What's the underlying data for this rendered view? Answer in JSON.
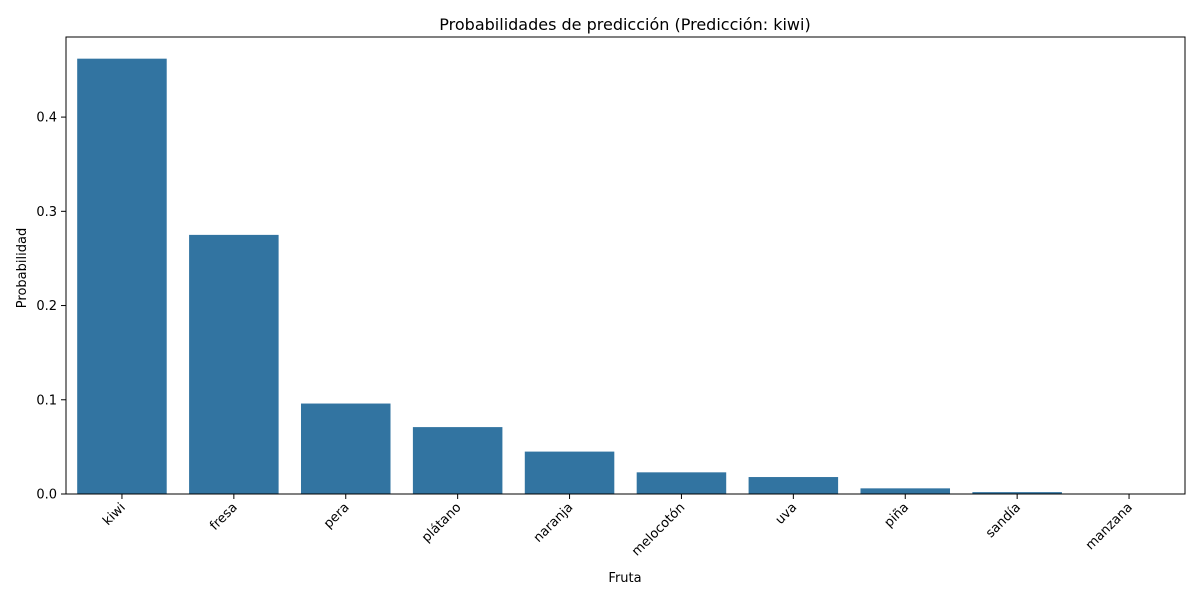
{
  "chart_data": {
    "type": "bar",
    "title": "Probabilidades de predicción (Predicción: kiwi)",
    "xlabel": "Fruta",
    "ylabel": "Probabilidad",
    "categories": [
      "kiwi",
      "fresa",
      "pera",
      "plátano",
      "naranja",
      "melocotón",
      "uva",
      "piña",
      "sandía",
      "manzana"
    ],
    "values": [
      0.462,
      0.275,
      0.096,
      0.071,
      0.045,
      0.023,
      0.018,
      0.006,
      0.002,
      0.0004
    ],
    "ylim": [
      0,
      0.485
    ],
    "yticks": [
      0.0,
      0.1,
      0.2,
      0.3,
      0.4
    ],
    "ytick_labels": [
      "0.0",
      "0.1",
      "0.2",
      "0.3",
      "0.4"
    ],
    "bar_color": "#3274a1",
    "grid": false,
    "legend": "none",
    "xtick_rotation_deg": 45
  }
}
